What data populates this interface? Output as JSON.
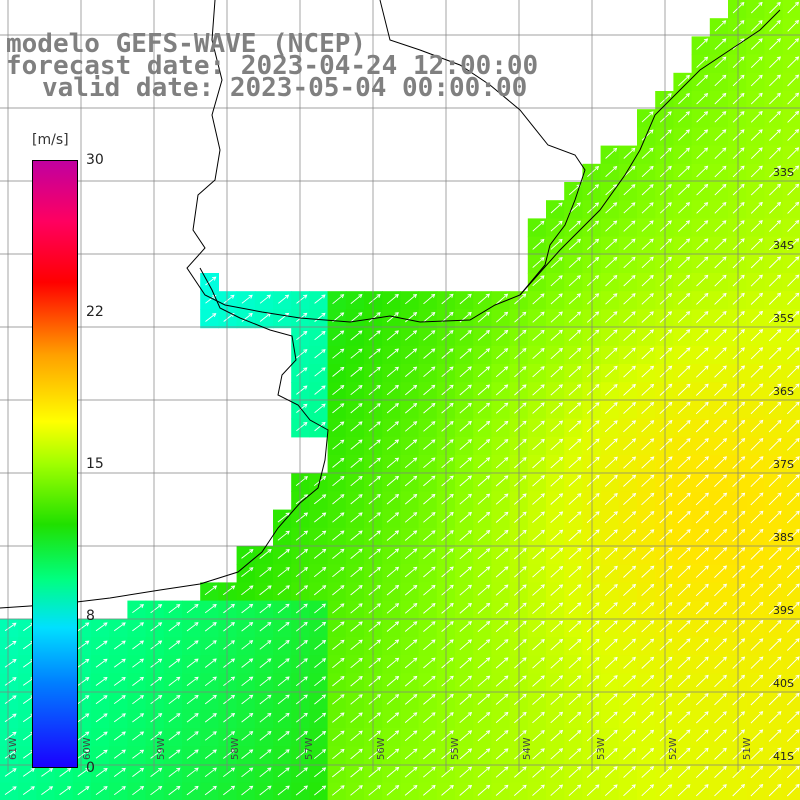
{
  "title": {
    "line1": "modelo GEFS-WAVE (NCEP)",
    "line2": "forecast date: 2023-04-24 12:00:00",
    "line3": "valid date: 2023-05-04 00:00:00"
  },
  "colorbar": {
    "unit": "[m/s]",
    "ticks": [
      "30",
      "22",
      "15",
      "8",
      "0"
    ],
    "tick_values": [
      30,
      22,
      15,
      8,
      0
    ],
    "range": [
      0,
      30
    ]
  },
  "latitude_labels": [
    "33S",
    "34S",
    "35S",
    "36S",
    "37S",
    "38S",
    "39S",
    "40S",
    "41S"
  ],
  "longitude_labels": [
    "61W",
    "60W",
    "59W",
    "58W",
    "57W",
    "56W",
    "55W",
    "54W",
    "53W",
    "52W",
    "51W"
  ],
  "colors": {
    "land": "#ffffff",
    "coast": "#000000",
    "grid": "#808080",
    "arrow": "#ffffff",
    "title": "#808080"
  }
}
